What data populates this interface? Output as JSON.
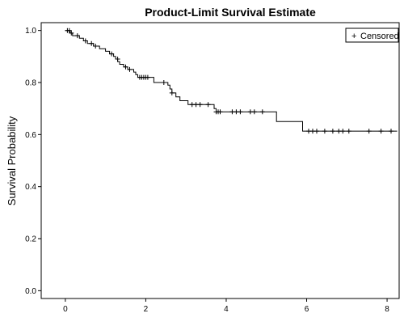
{
  "chart_data": {
    "type": "line",
    "title": "Product-Limit Survival Estimate",
    "xlabel": "",
    "ylabel": "Survival Probability",
    "xlim": [
      -0.6,
      8.3
    ],
    "ylim": [
      -0.03,
      1.03
    ],
    "xticks": [
      0,
      2,
      4,
      6,
      8
    ],
    "xtick_labels": [
      "0",
      "2",
      "4",
      "6",
      "8"
    ],
    "yticks": [
      0.0,
      0.2,
      0.4,
      0.6,
      0.8,
      1.0
    ],
    "ytick_labels": [
      "0.0",
      "0.2",
      "0.4",
      "0.6",
      "0.8",
      "1.0"
    ],
    "grid": false,
    "legend": {
      "placement": "top-right",
      "entries": [
        {
          "symbol": "+",
          "label": "Censored"
        }
      ]
    },
    "series": [
      {
        "step_points": [
          [
            0,
            1.0
          ],
          [
            0.12,
            0.99
          ],
          [
            0.18,
            0.98
          ],
          [
            0.35,
            0.97
          ],
          [
            0.45,
            0.96
          ],
          [
            0.55,
            0.95
          ],
          [
            0.7,
            0.94
          ],
          [
            0.85,
            0.93
          ],
          [
            1.0,
            0.92
          ],
          [
            1.1,
            0.91
          ],
          [
            1.2,
            0.9
          ],
          [
            1.25,
            0.89
          ],
          [
            1.3,
            0.88
          ],
          [
            1.35,
            0.87
          ],
          [
            1.45,
            0.86
          ],
          [
            1.55,
            0.85
          ],
          [
            1.7,
            0.84
          ],
          [
            1.75,
            0.83
          ],
          [
            1.8,
            0.82
          ],
          [
            2.2,
            0.8
          ],
          [
            2.55,
            0.79
          ],
          [
            2.6,
            0.775
          ],
          [
            2.65,
            0.76
          ],
          [
            2.75,
            0.745
          ],
          [
            2.85,
            0.73
          ],
          [
            3.05,
            0.715
          ],
          [
            3.7,
            0.7
          ],
          [
            3.75,
            0.687
          ],
          [
            5.25,
            0.65
          ],
          [
            5.9,
            0.613
          ],
          [
            8.25,
            0.613
          ]
        ],
        "censored": [
          [
            0.05,
            1.0
          ],
          [
            0.1,
            1.0
          ],
          [
            0.15,
            0.99
          ],
          [
            0.3,
            0.98
          ],
          [
            0.5,
            0.96
          ],
          [
            0.65,
            0.95
          ],
          [
            0.75,
            0.94
          ],
          [
            1.15,
            0.91
          ],
          [
            1.3,
            0.89
          ],
          [
            1.5,
            0.86
          ],
          [
            1.6,
            0.85
          ],
          [
            1.85,
            0.82
          ],
          [
            1.9,
            0.82
          ],
          [
            1.95,
            0.82
          ],
          [
            2.0,
            0.82
          ],
          [
            2.05,
            0.82
          ],
          [
            2.45,
            0.8
          ],
          [
            2.65,
            0.76
          ],
          [
            3.15,
            0.715
          ],
          [
            3.25,
            0.715
          ],
          [
            3.35,
            0.715
          ],
          [
            3.55,
            0.715
          ],
          [
            3.75,
            0.687
          ],
          [
            3.8,
            0.687
          ],
          [
            3.85,
            0.687
          ],
          [
            4.15,
            0.687
          ],
          [
            4.25,
            0.687
          ],
          [
            4.35,
            0.687
          ],
          [
            4.6,
            0.687
          ],
          [
            4.7,
            0.687
          ],
          [
            4.9,
            0.687
          ],
          [
            6.05,
            0.613
          ],
          [
            6.15,
            0.613
          ],
          [
            6.25,
            0.613
          ],
          [
            6.45,
            0.613
          ],
          [
            6.65,
            0.613
          ],
          [
            6.8,
            0.613
          ],
          [
            6.9,
            0.613
          ],
          [
            7.05,
            0.613
          ],
          [
            7.55,
            0.613
          ],
          [
            7.85,
            0.613
          ],
          [
            8.1,
            0.613
          ]
        ]
      }
    ]
  }
}
